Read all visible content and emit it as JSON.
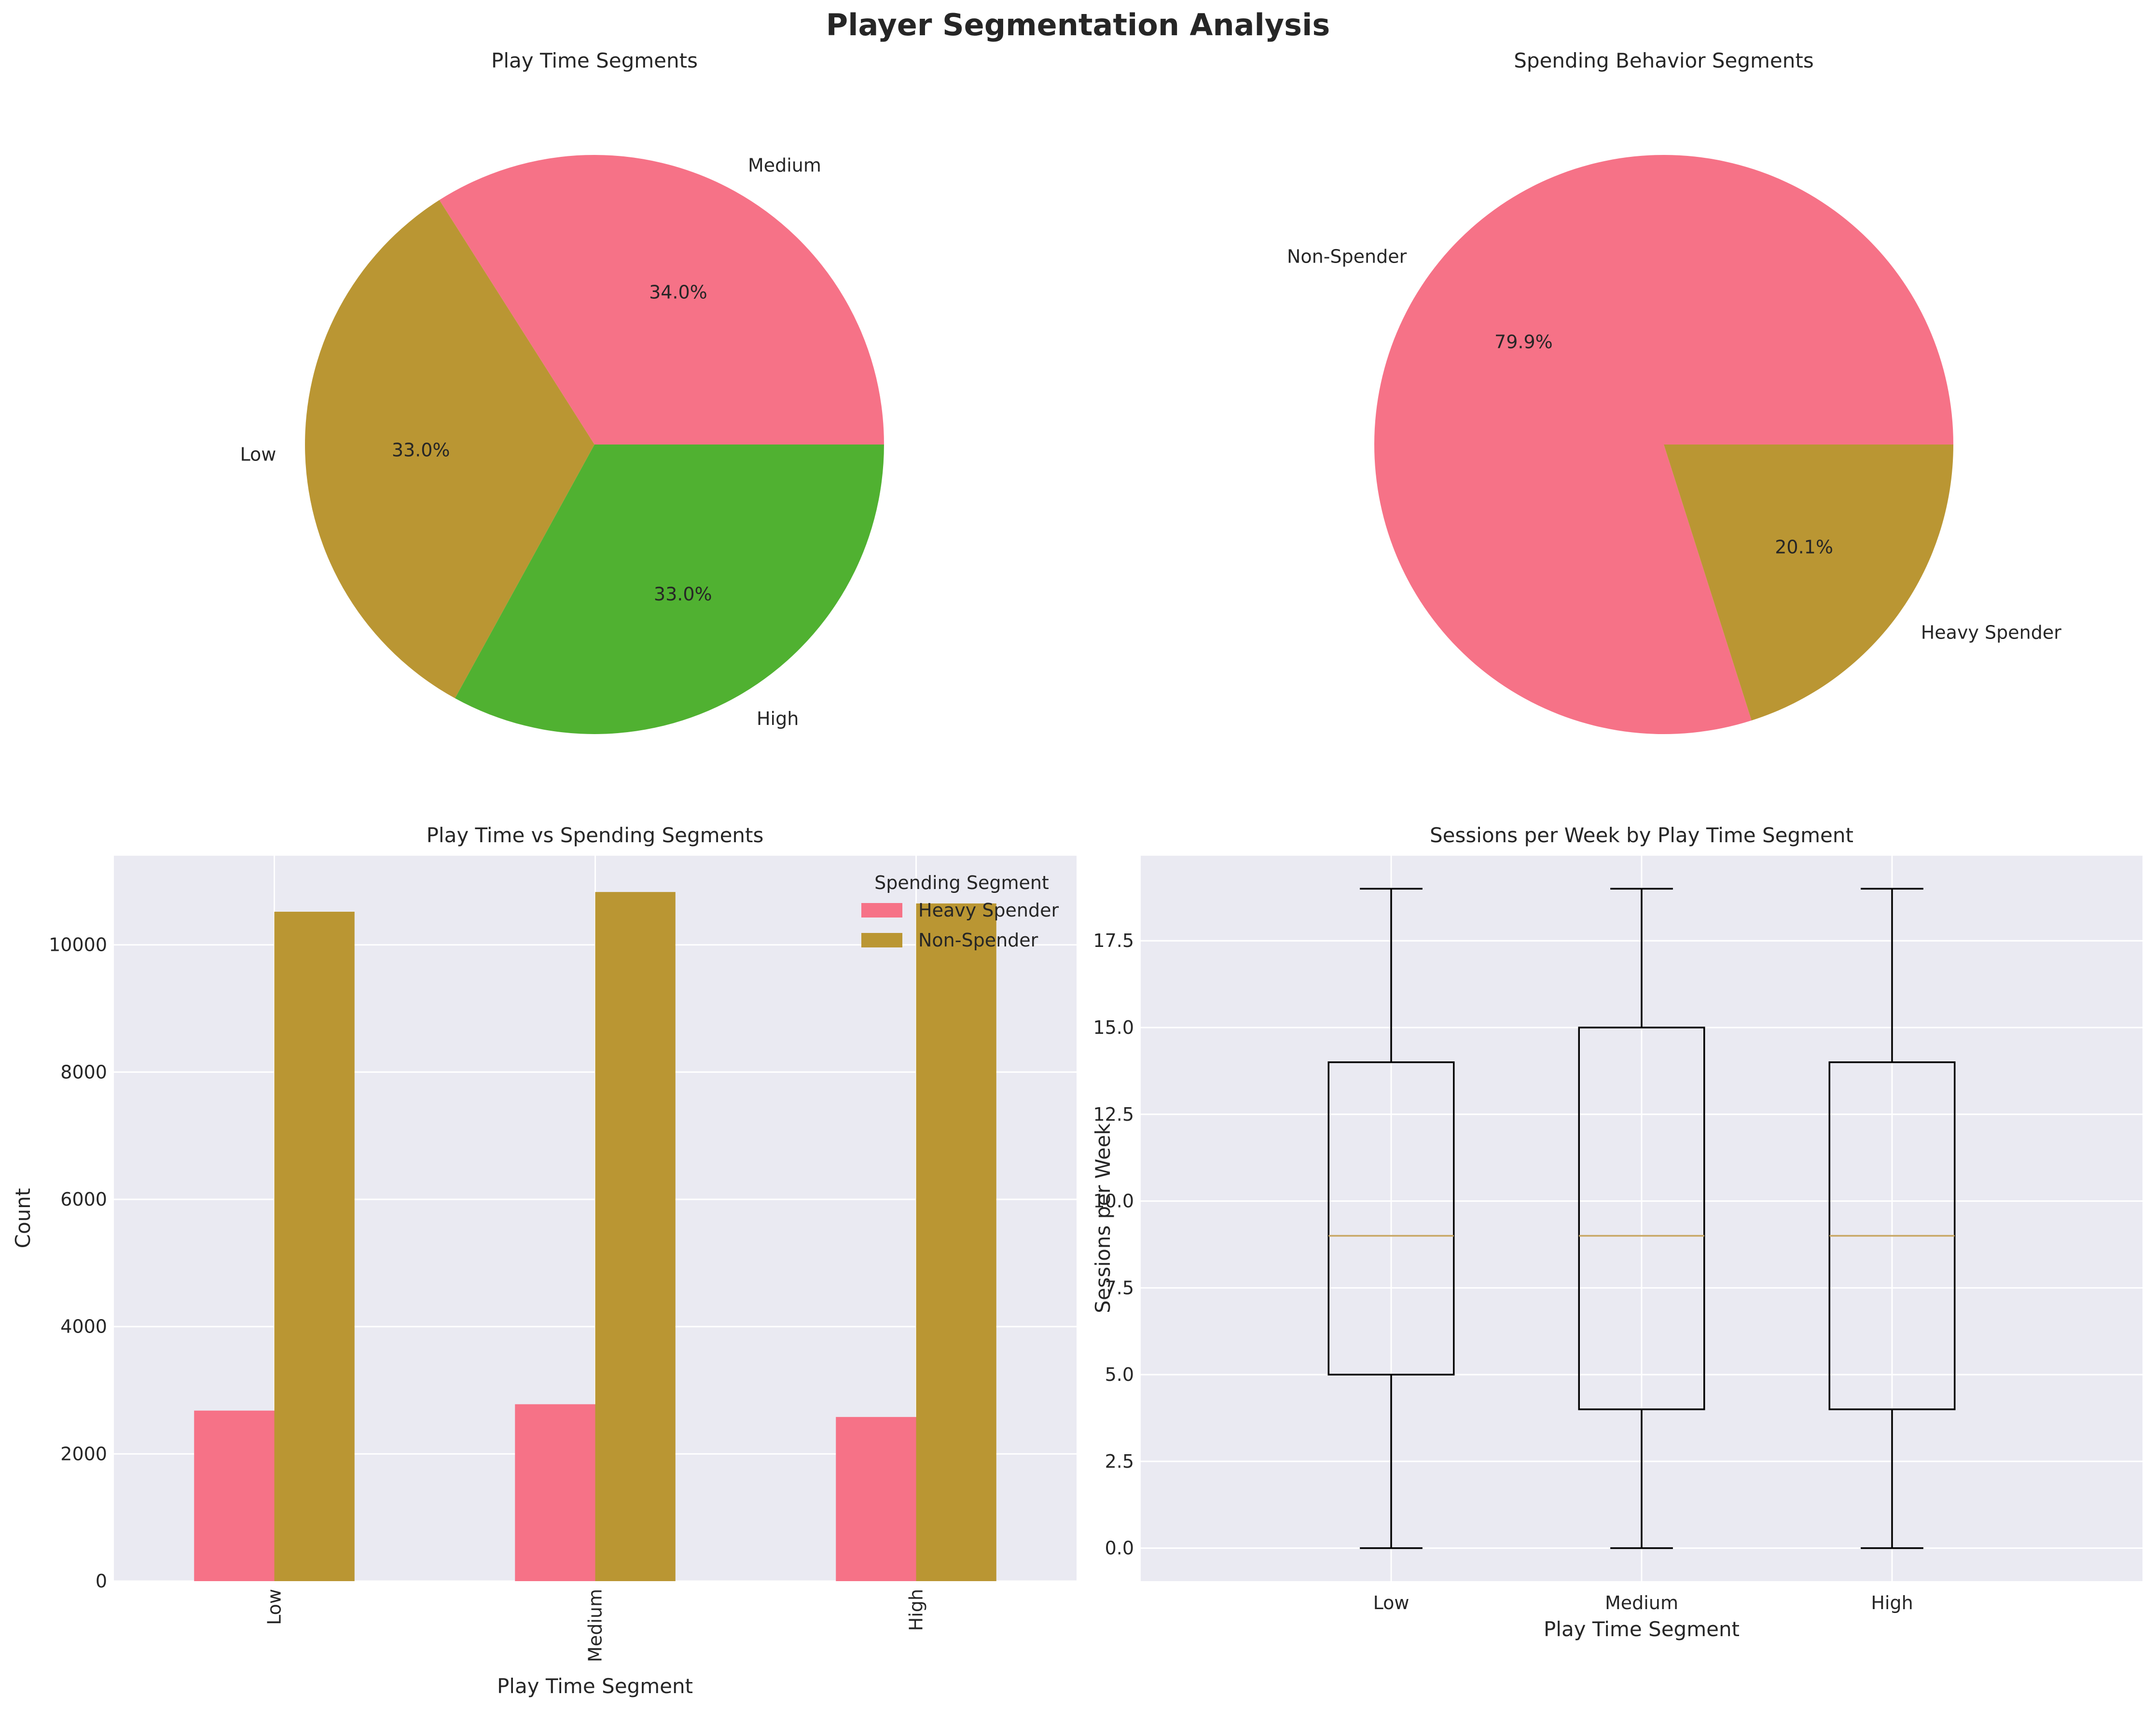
{
  "figure": {
    "suptitle": "Player Segmentation Analysis"
  },
  "colors": {
    "pink": "#F67287",
    "olive": "#BA9633",
    "green": "#50B131",
    "axes_bg": "#EAEAF2",
    "grid": "#ffffff",
    "box_line": "#000000",
    "median_line": "#C8A765"
  },
  "chart_data": [
    {
      "type": "pie",
      "title": "Play Time Segments",
      "labels": [
        "Medium",
        "Low",
        "High"
      ],
      "values": [
        34.0,
        33.0,
        33.0
      ],
      "autopct_labels": [
        "34.0%",
        "33.0%",
        "33.0%"
      ],
      "colors": [
        "#F67287",
        "#BA9633",
        "#50B131"
      ],
      "startangle": 0
    },
    {
      "type": "pie",
      "title": "Spending Behavior Segments",
      "labels": [
        "Non-Spender",
        "Heavy Spender"
      ],
      "values": [
        79.9,
        20.1
      ],
      "autopct_labels": [
        "79.9%",
        "20.1%"
      ],
      "colors": [
        "#F67287",
        "#BA9633"
      ],
      "startangle": 0
    },
    {
      "type": "bar",
      "title": "Play Time vs Spending Segments",
      "xlabel": "Play Time Segment",
      "ylabel": "Count",
      "categories": [
        "Low",
        "Medium",
        "High"
      ],
      "series": [
        {
          "name": "Heavy Spender",
          "values": [
            2680,
            2780,
            2580
          ],
          "color": "#F67287"
        },
        {
          "name": "Non-Spender",
          "values": [
            10520,
            10830,
            10650
          ],
          "color": "#BA9633"
        }
      ],
      "ylim": [
        0,
        11400
      ],
      "yticks": [
        0,
        2000,
        4000,
        6000,
        8000,
        10000
      ],
      "ytick_labels": [
        "0",
        "2000",
        "4000",
        "6000",
        "8000",
        "10000"
      ],
      "legend_title": "Spending Segment",
      "legend_position": "top-right",
      "xtick_rotation": 90,
      "grid": true
    },
    {
      "type": "box",
      "title": "Sessions per Week by Play Time Segment",
      "xlabel": "Play Time Segment",
      "ylabel": "Sessions per Week",
      "categories": [
        "Low",
        "Medium",
        "High"
      ],
      "boxes": [
        {
          "whislo": 0,
          "q1": 5,
          "med": 9,
          "q3": 14,
          "whishi": 19
        },
        {
          "whislo": 0,
          "q1": 4,
          "med": 9,
          "q3": 15,
          "whishi": 19
        },
        {
          "whislo": 0,
          "q1": 4,
          "med": 9,
          "q3": 14,
          "whishi": 19
        }
      ],
      "ylim": [
        -0.95,
        19.95
      ],
      "yticks": [
        0,
        2.5,
        5,
        7.5,
        10,
        12.5,
        15,
        17.5
      ],
      "ytick_labels": [
        "0.0",
        "2.5",
        "5.0",
        "7.5",
        "10.0",
        "12.5",
        "15.0",
        "17.5"
      ],
      "grid": true
    }
  ]
}
